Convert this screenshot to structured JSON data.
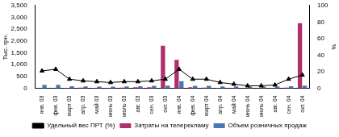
{
  "chart_data": {
    "type": "bar",
    "categories": [
      "янв. 03",
      "фев. 03",
      "март 03",
      "апр. 03",
      "май 03",
      "июнь 03",
      "июль 03",
      "авг. 03",
      "сен. 03",
      "окт. 03",
      "янв. 04",
      "фев. 04",
      "март 04",
      "апр. 04",
      "май 04",
      "июнь 04",
      "июль 04",
      "авг. 04",
      "сен. 04",
      "окт. 04"
    ],
    "series": [
      {
        "name": "Затраты на телерекламу",
        "type": "bar",
        "color": "#b0306e",
        "values": [
          10,
          10,
          20,
          30,
          20,
          20,
          30,
          40,
          40,
          1800,
          1200,
          40,
          30,
          20,
          10,
          10,
          10,
          10,
          30,
          2750
        ]
      },
      {
        "name": "Объем розничных продаж",
        "type": "bar",
        "color": "#4a78b4",
        "values": [
          150,
          150,
          90,
          80,
          70,
          70,
          80,
          90,
          100,
          110,
          300,
          100,
          100,
          80,
          80,
          70,
          70,
          80,
          90,
          110
        ]
      },
      {
        "name": "Удельный вес ПРТ (%)",
        "type": "line",
        "axis": "y2",
        "color": "#000000",
        "marker": "triangle",
        "values": [
          21,
          23,
          11,
          9,
          8,
          7,
          8,
          8,
          9,
          11,
          23,
          11,
          11,
          7,
          5,
          3,
          3,
          4,
          11,
          16
        ]
      }
    ],
    "y_label": "Тыс. грн.",
    "y2_label": "%",
    "ylim": [
      0,
      3500
    ],
    "yticks": [
      0,
      500,
      1000,
      1500,
      2000,
      2500,
      3000,
      3500
    ],
    "y2lim": [
      0,
      100
    ],
    "y2ticks": [
      0,
      20,
      40,
      60,
      80,
      100
    ],
    "grid": false,
    "legend": "bottom"
  }
}
